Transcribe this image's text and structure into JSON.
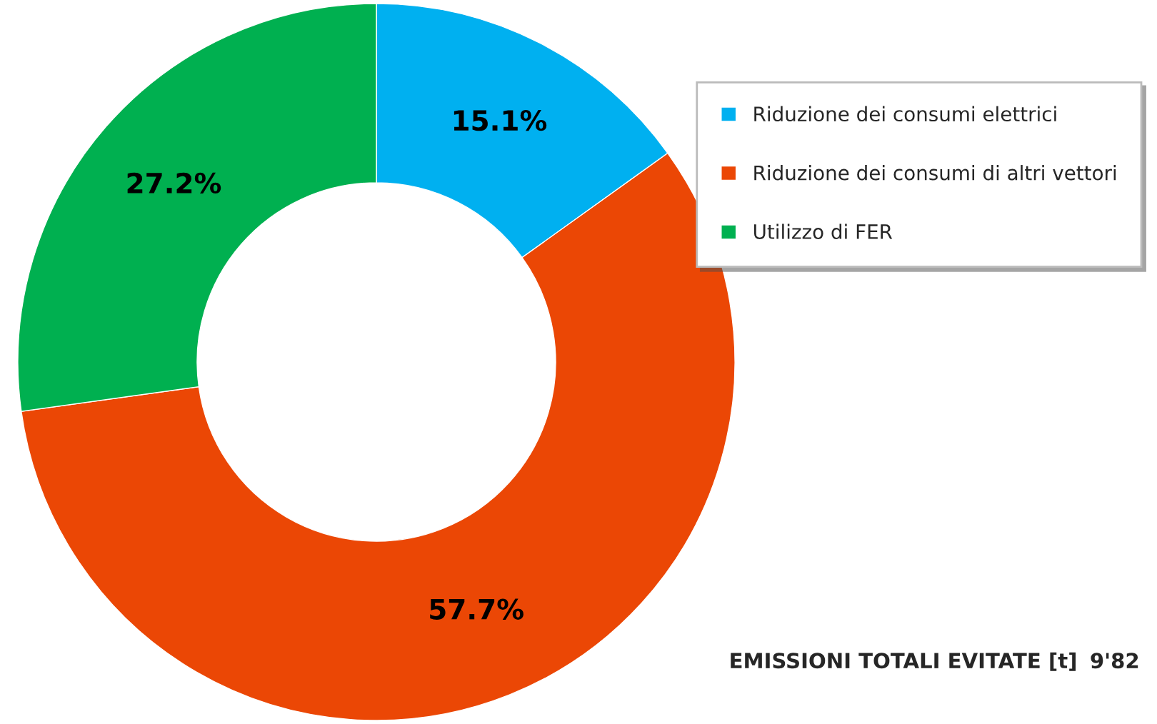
{
  "chart_data": {
    "type": "donut",
    "categories": [
      "Riduzione dei consumi elettrici",
      "Riduzione dei consumi di altri vettori",
      "Utilizzo di FER"
    ],
    "values": [
      15.1,
      57.7,
      27.2
    ],
    "colors": [
      "#00b0f0",
      "#eb4705",
      "#00b050"
    ],
    "value_labels": [
      "15.1%",
      "57.7%",
      "27.2%"
    ],
    "legend": "right",
    "annotations": [
      "EMISSIONI TOTALI EVITATE [t]",
      "9'82"
    ]
  }
}
